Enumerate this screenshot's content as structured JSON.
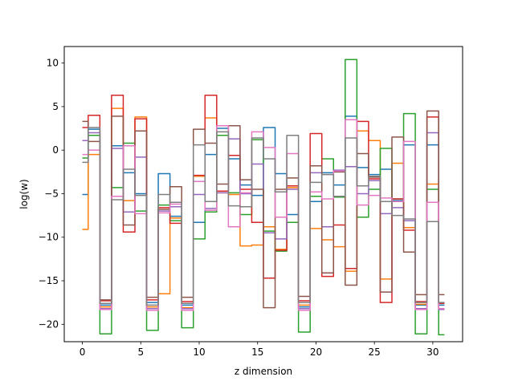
{
  "chart_data": {
    "type": "line",
    "step": "mid",
    "xlabel": "z dimension",
    "ylabel": "log(w)",
    "xlim": [
      -1.55,
      32.55
    ],
    "ylim": [
      -22.0,
      11.9
    ],
    "xticks": [
      0,
      5,
      10,
      15,
      20,
      25,
      30
    ],
    "yticks": [
      10,
      5,
      0,
      -5,
      -10,
      -15,
      -20
    ],
    "grid": false,
    "x": [
      0,
      1,
      2,
      3,
      4,
      5,
      6,
      7,
      8,
      9,
      10,
      11,
      12,
      13,
      14,
      15,
      16,
      17,
      18,
      19,
      20,
      21,
      22,
      23,
      24,
      25,
      26,
      27,
      28,
      29,
      30,
      31
    ],
    "series": [
      {
        "color": "#1f77b4",
        "values": [
          -5.1,
          2.4,
          -17.8,
          0.5,
          -2.6,
          -5.0,
          -17.5,
          -2.7,
          -7.6,
          -17.8,
          -8.3,
          -0.5,
          2.5,
          -1.0,
          -4.0,
          -5.2,
          2.6,
          -2.7,
          -7.4,
          -18.0,
          -5.9,
          -2.6,
          -4.0,
          3.9,
          -2.0,
          -2.8,
          -2.2,
          -5.8,
          0.6,
          -17.8,
          0.6,
          -17.8
        ]
      },
      {
        "color": "#ff7f0e",
        "values": [
          -9.1,
          -0.5,
          -18.0,
          4.8,
          -5.8,
          3.8,
          -18.0,
          -16.5,
          -7.8,
          -18.1,
          -3.0,
          3.7,
          -4.9,
          -5.1,
          -11.0,
          -10.9,
          -8.8,
          -11.4,
          -4.3,
          -17.8,
          -9.0,
          -10.3,
          -11.1,
          -13.9,
          2.2,
          1.1,
          -14.8,
          -1.5,
          -8.9,
          -17.7,
          -3.9,
          -18.2
        ]
      },
      {
        "color": "#2ca02c",
        "values": [
          -0.9,
          1.7,
          -21.1,
          -4.3,
          0.8,
          -7.0,
          -20.7,
          -6.3,
          -8.1,
          -20.4,
          -10.2,
          -7.1,
          1.7,
          -4.9,
          -7.4,
          1.2,
          -9.3,
          -11.6,
          -8.3,
          -20.9,
          -5.3,
          -1.0,
          -5.4,
          10.4,
          -7.7,
          -4.5,
          0.2,
          -5.6,
          4.2,
          -21.1,
          -4.5,
          -21.2
        ]
      },
      {
        "color": "#d62728",
        "values": [
          2.6,
          4.0,
          -17.3,
          6.3,
          -9.4,
          3.6,
          -17.2,
          -6.6,
          -8.4,
          -17.4,
          -2.9,
          6.3,
          -4.7,
          -0.6,
          -4.5,
          -8.3,
          -14.7,
          -11.5,
          -4.1,
          -17.3,
          1.9,
          -14.5,
          -8.6,
          -13.6,
          3.3,
          -3.3,
          -17.5,
          -5.6,
          -9.2,
          -17.4,
          3.8,
          -17.6
        ]
      },
      {
        "color": "#9467bd",
        "values": [
          1.1,
          2.0,
          -18.2,
          0.2,
          -7.1,
          -0.8,
          -18.2,
          -7.0,
          -6.5,
          -18.2,
          -5.1,
          -6.7,
          -4.9,
          1.3,
          -5.0,
          -1.6,
          -9.5,
          -10.2,
          -4.5,
          -18.2,
          -2.6,
          -8.8,
          -2.3,
          -1.9,
          -5.0,
          -3.5,
          -7.3,
          -6.6,
          -8.1,
          -18.2,
          2.0,
          -18.3
        ]
      },
      {
        "color": "#8c564b",
        "values": [
          3.3,
          1.0,
          -17.2,
          3.9,
          -8.6,
          2.2,
          -16.9,
          -6.8,
          -4.2,
          -16.9,
          2.4,
          0.8,
          -3.9,
          2.8,
          -3.4,
          -4.5,
          -18.1,
          -4.5,
          -3.2,
          -16.8,
          -1.8,
          -14.1,
          -2.5,
          -15.5,
          -0.4,
          -3.1,
          -16.3,
          1.5,
          -11.7,
          -16.6,
          4.5,
          -16.6
        ]
      },
      {
        "color": "#e377c2",
        "values": [
          -0.5,
          0.0,
          -18.3,
          -5.3,
          0.5,
          -7.3,
          -18.4,
          -7.2,
          -6.2,
          -18.4,
          -3.6,
          -6.9,
          2.8,
          -8.8,
          -4.9,
          2.1,
          0.3,
          -7.7,
          -0.4,
          -18.4,
          -4.8,
          -5.6,
          -2.4,
          3.5,
          -6.3,
          -5.2,
          -5.5,
          -5.9,
          1.0,
          -18.3,
          -6.0,
          -18.2
        ]
      },
      {
        "color": "#7f7f7f",
        "values": [
          -1.4,
          2.6,
          -17.6,
          -5.7,
          -2.2,
          -5.2,
          -17.8,
          -5.1,
          -6.0,
          -17.6,
          0.6,
          -5.9,
          2.1,
          -6.4,
          -6.5,
          1.4,
          -1.0,
          -4.8,
          1.7,
          -17.5,
          -3.7,
          -2.8,
          -5.3,
          1.4,
          -4.1,
          -3.0,
          -5.9,
          -7.5,
          -7.9,
          -17.5,
          -8.2,
          -17.5
        ]
      }
    ]
  }
}
